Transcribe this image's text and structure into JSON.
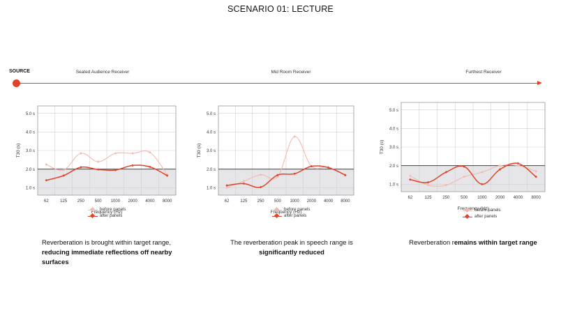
{
  "title": "SCENARIO 01: LECTURE",
  "source_label": "SOURCE",
  "receivers": [
    "Seated Audience Receiver",
    "Mid Room Receiver",
    "Furthest Receiver"
  ],
  "colors": {
    "accent": "#e0432a",
    "before": "#f4b8b0",
    "after": "#e0432a",
    "target_band": "#e6e6e8",
    "grid": "#cfcfd2"
  },
  "legend": {
    "before": "before panels",
    "after": "after panels"
  },
  "captions": [
    {
      "pre": "Reverberation is brought within target range, ",
      "bold": "reducing immediate reflections off nearby surfaces",
      "post": ""
    },
    {
      "pre": "The reverberation peak in speech range is ",
      "bold": "significantly reduced",
      "post": ""
    },
    {
      "pre": "Reverberation r",
      "bold": "emains within target range",
      "post": ""
    }
  ],
  "chart_data": [
    {
      "type": "line",
      "title": "Seated Audience Receiver",
      "xlabel": "Frequency (Hz)",
      "ylabel": "T30 (s)",
      "categories": [
        "62",
        "125",
        "250",
        "500",
        "1000",
        "2000",
        "4000",
        "8000"
      ],
      "ytick_labels": [
        "1.0 s",
        "2.0 s",
        "3.0 s",
        "4.0 s",
        "5.0 s"
      ],
      "yticks": [
        1,
        2,
        3,
        4,
        5
      ],
      "ylim": [
        0.6,
        5.4
      ],
      "target_max": 2.0,
      "series": [
        {
          "name": "before panels",
          "values": [
            2.25,
            1.95,
            2.85,
            2.4,
            2.85,
            2.85,
            2.9,
            1.7
          ]
        },
        {
          "name": "after panels",
          "values": [
            1.4,
            1.65,
            2.1,
            1.98,
            1.95,
            2.2,
            2.12,
            1.65
          ]
        }
      ],
      "grid": true,
      "legend_position": "bottom"
    },
    {
      "type": "line",
      "title": "Mid Room Receiver",
      "xlabel": "Frequency (Hz)",
      "ylabel": "T30 (s)",
      "categories": [
        "62",
        "125",
        "250",
        "500",
        "1000",
        "2000",
        "4000",
        "8000"
      ],
      "ytick_labels": [
        "1.0 s",
        "2.0 s",
        "3.0 s",
        "4.0 s",
        "5.0 s"
      ],
      "yticks": [
        1,
        2,
        3,
        4,
        5
      ],
      "ylim": [
        0.6,
        5.4
      ],
      "target_max": 2.0,
      "series": [
        {
          "name": "before panels",
          "values": [
            1.0,
            1.35,
            1.7,
            1.6,
            3.75,
            2.15,
            2.1,
            1.65
          ]
        },
        {
          "name": "after panels",
          "values": [
            1.12,
            1.22,
            1.03,
            1.68,
            1.75,
            2.15,
            2.08,
            1.68
          ]
        }
      ],
      "grid": true,
      "legend_position": "bottom"
    },
    {
      "type": "line",
      "title": "Furthest Receiver",
      "xlabel": "Frequency (Hz)",
      "ylabel": "T30 (s)",
      "categories": [
        "62",
        "125",
        "250",
        "500",
        "1000",
        "2000",
        "4000",
        "8000"
      ],
      "ytick_labels": [
        "1.0 s",
        "2.0 s",
        "3.0 s",
        "4.0 s",
        "5.0 s"
      ],
      "yticks": [
        1,
        2,
        3,
        4,
        5
      ],
      "ylim": [
        0.6,
        5.4
      ],
      "target_max": 2.0,
      "series": [
        {
          "name": "before panels",
          "values": [
            1.45,
            0.95,
            0.95,
            1.4,
            1.65,
            2.0,
            2.0,
            1.7
          ]
        },
        {
          "name": "after panels",
          "values": [
            1.25,
            1.1,
            1.65,
            1.95,
            1.0,
            1.8,
            2.12,
            1.4
          ]
        }
      ],
      "grid": true,
      "legend_position": "bottom"
    }
  ]
}
